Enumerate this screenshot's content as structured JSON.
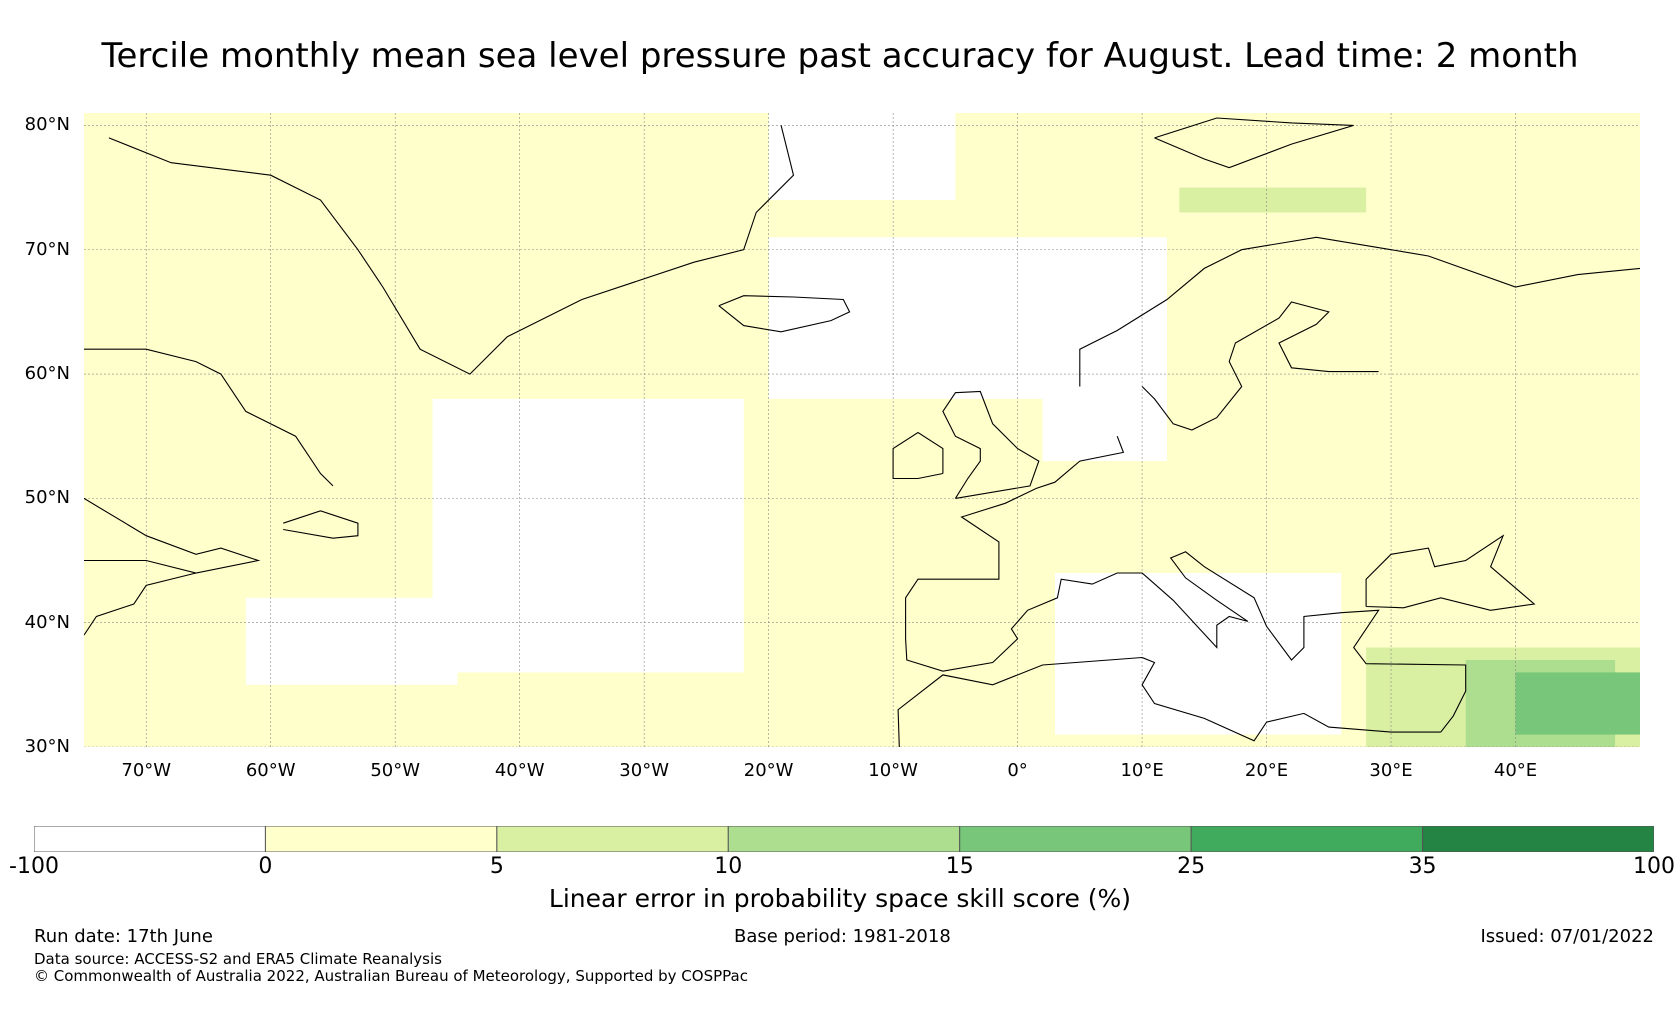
{
  "title": "Tercile monthly mean sea level pressure past accuracy for August. Lead time: 2 month",
  "map": {
    "lon_range": [
      -75,
      50
    ],
    "lat_range": [
      30,
      81
    ],
    "lat_ticks": [
      {
        "value": 80,
        "label": "80°N"
      },
      {
        "value": 70,
        "label": "70°N"
      },
      {
        "value": 60,
        "label": "60°N"
      },
      {
        "value": 50,
        "label": "50°N"
      },
      {
        "value": 40,
        "label": "40°N"
      },
      {
        "value": 30,
        "label": "30°N"
      }
    ],
    "lon_ticks": [
      {
        "value": -70,
        "label": "70°W"
      },
      {
        "value": -60,
        "label": "60°W"
      },
      {
        "value": -50,
        "label": "50°W"
      },
      {
        "value": -40,
        "label": "40°W"
      },
      {
        "value": -30,
        "label": "30°W"
      },
      {
        "value": -20,
        "label": "20°W"
      },
      {
        "value": -10,
        "label": "10°W"
      },
      {
        "value": 0,
        "label": "0°"
      },
      {
        "value": 10,
        "label": "10°E"
      },
      {
        "value": 20,
        "label": "20°E"
      },
      {
        "value": 30,
        "label": "30°E"
      },
      {
        "value": 40,
        "label": "40°E"
      }
    ],
    "fill_color_default": "#ffffcc",
    "skill_regions": [
      {
        "name": "central-north-atlantic",
        "category": "-100-0",
        "lon": [
          -47,
          -22
        ],
        "lat": [
          36,
          58
        ]
      },
      {
        "name": "mid-atlantic-south",
        "category": "-100-0",
        "lon": [
          -62,
          -45
        ],
        "lat": [
          35,
          42
        ]
      },
      {
        "name": "norwegian-sea",
        "category": "-100-0",
        "lon": [
          -20,
          12
        ],
        "lat": [
          58,
          71
        ]
      },
      {
        "name": "north-sea",
        "category": "-100-0",
        "lon": [
          2,
          12
        ],
        "lat": [
          53,
          60
        ]
      },
      {
        "name": "mediterranean",
        "category": "-100-0",
        "lon": [
          3,
          26
        ],
        "lat": [
          31,
          44
        ]
      },
      {
        "name": "greenland-sea",
        "category": "-100-0",
        "lon": [
          -20,
          -5
        ],
        "lat": [
          74,
          81
        ]
      },
      {
        "name": "barents-sea",
        "category": "5-10",
        "lon": [
          13,
          28
        ],
        "lat": [
          73,
          75
        ]
      },
      {
        "name": "eastern-med",
        "category": "5-10",
        "lon": [
          28,
          50
        ],
        "lat": [
          30,
          38
        ]
      },
      {
        "name": "levant",
        "category": "10-15",
        "lon": [
          36,
          48
        ],
        "lat": [
          30,
          37
        ]
      },
      {
        "name": "iran-west",
        "category": "15-25",
        "lon": [
          40,
          50
        ],
        "lat": [
          31,
          36
        ]
      }
    ],
    "coast_lines": [
      {
        "name": "greenland-coast",
        "points": [
          [
            -73,
            79
          ],
          [
            -68,
            77
          ],
          [
            -60,
            76
          ],
          [
            -56,
            74
          ],
          [
            -53,
            70
          ],
          [
            -51,
            67
          ],
          [
            -48,
            62
          ],
          [
            -44,
            60
          ],
          [
            -41,
            63
          ],
          [
            -35,
            66
          ],
          [
            -26,
            69
          ],
          [
            -22,
            70
          ],
          [
            -21,
            73
          ],
          [
            -18,
            76
          ],
          [
            -19,
            80
          ]
        ]
      },
      {
        "name": "iceland-coast",
        "points": [
          [
            -24,
            65.5
          ],
          [
            -22,
            66.3
          ],
          [
            -18,
            66.2
          ],
          [
            -14,
            66
          ],
          [
            -13.5,
            65
          ],
          [
            -15,
            64.3
          ],
          [
            -19,
            63.4
          ],
          [
            -22,
            63.9
          ],
          [
            -24,
            65.5
          ]
        ]
      },
      {
        "name": "labrador-coast",
        "points": [
          [
            -75,
            62
          ],
          [
            -70,
            62
          ],
          [
            -66,
            61
          ],
          [
            -64,
            60
          ],
          [
            -62,
            57
          ],
          [
            -58,
            55
          ],
          [
            -56,
            52
          ],
          [
            -55,
            51
          ]
        ]
      },
      {
        "name": "newfoundland-coast",
        "points": [
          [
            -59,
            48
          ],
          [
            -56,
            49
          ],
          [
            -53,
            48
          ],
          [
            -53,
            47
          ],
          [
            -55,
            46.8
          ],
          [
            -59,
            47.5
          ]
        ]
      },
      {
        "name": "nova-scotia-coast",
        "points": [
          [
            -75,
            45
          ],
          [
            -70,
            45
          ],
          [
            -66,
            44
          ],
          [
            -61,
            45
          ],
          [
            -64,
            46
          ],
          [
            -66,
            45.5
          ],
          [
            -70,
            47
          ],
          [
            -75,
            50
          ]
        ]
      },
      {
        "name": "us-east-coast",
        "points": [
          [
            -75,
            39
          ],
          [
            -74,
            40.5
          ],
          [
            -71,
            41.5
          ],
          [
            -70,
            43
          ],
          [
            -66,
            44
          ]
        ]
      },
      {
        "name": "british-isles-coast",
        "points": [
          [
            -5,
            50
          ],
          [
            1,
            51
          ],
          [
            1.7,
            53
          ],
          [
            0,
            54
          ],
          [
            -2,
            56
          ],
          [
            -3,
            58.6
          ],
          [
            -5,
            58.5
          ],
          [
            -6,
            57
          ],
          [
            -5,
            55
          ],
          [
            -3,
            54
          ],
          [
            -3,
            53
          ],
          [
            -4,
            51.6
          ],
          [
            -5,
            50
          ]
        ]
      },
      {
        "name": "ireland-coast",
        "points": [
          [
            -6,
            52
          ],
          [
            -6,
            54
          ],
          [
            -8,
            55.3
          ],
          [
            -10,
            54
          ],
          [
            -10,
            51.6
          ],
          [
            -8,
            51.6
          ],
          [
            -6,
            52
          ]
        ]
      },
      {
        "name": "scandinavia-coast",
        "points": [
          [
            5,
            59
          ],
          [
            5,
            62
          ],
          [
            8,
            63.5
          ],
          [
            12,
            66
          ],
          [
            15,
            68.5
          ],
          [
            18,
            70
          ],
          [
            24,
            71
          ],
          [
            30,
            70
          ],
          [
            33,
            69.5
          ],
          [
            40,
            67
          ],
          [
            45,
            68
          ],
          [
            50,
            68.5
          ]
        ]
      },
      {
        "name": "sweden-baltic-coast",
        "points": [
          [
            10,
            59
          ],
          [
            11,
            58
          ],
          [
            12.5,
            56
          ],
          [
            14,
            55.5
          ],
          [
            16,
            56.5
          ],
          [
            18,
            59
          ],
          [
            17,
            61
          ],
          [
            17.5,
            62.5
          ],
          [
            21,
            64.5
          ],
          [
            22,
            65.8
          ],
          [
            25,
            65
          ],
          [
            24,
            64
          ],
          [
            21,
            62.5
          ],
          [
            22,
            60.5
          ],
          [
            25,
            60.2
          ],
          [
            29,
            60.2
          ]
        ]
      },
      {
        "name": "europe-west-coast",
        "points": [
          [
            8,
            55
          ],
          [
            8.5,
            53.7
          ],
          [
            5,
            53
          ],
          [
            3,
            51.3
          ],
          [
            1.5,
            50.8
          ],
          [
            -1,
            49.6
          ],
          [
            -4.5,
            48.5
          ],
          [
            -1.5,
            46.5
          ],
          [
            -1.5,
            43.5
          ],
          [
            -8,
            43.5
          ],
          [
            -9,
            42
          ],
          [
            -9,
            38.7
          ],
          [
            -8.9,
            37
          ],
          [
            -6,
            36.1
          ],
          [
            -2,
            36.8
          ],
          [
            0,
            38.7
          ],
          [
            -0.5,
            39.5
          ],
          [
            0.8,
            41
          ],
          [
            3.2,
            42
          ],
          [
            3.5,
            43.5
          ],
          [
            6,
            43.1
          ],
          [
            8,
            44
          ],
          [
            10,
            44
          ],
          [
            12.5,
            41.8
          ],
          [
            16,
            38
          ],
          [
            16,
            39.8
          ],
          [
            17,
            40.5
          ],
          [
            18.5,
            40.1
          ],
          [
            16,
            41.8
          ],
          [
            13.5,
            43.6
          ],
          [
            12.3,
            45.2
          ],
          [
            13.5,
            45.7
          ],
          [
            15,
            44.5
          ],
          [
            19,
            42
          ],
          [
            20,
            39.7
          ],
          [
            22,
            37
          ],
          [
            23,
            38
          ],
          [
            23,
            40.5
          ],
          [
            26,
            40.8
          ],
          [
            29,
            41
          ],
          [
            27,
            38
          ],
          [
            28,
            36.7
          ],
          [
            36,
            36.6
          ],
          [
            36,
            34.5
          ],
          [
            35,
            32.5
          ],
          [
            34,
            31.2
          ]
        ]
      },
      {
        "name": "north-africa-coast",
        "points": [
          [
            -9.5,
            30
          ],
          [
            -9.6,
            33
          ],
          [
            -6,
            35.8
          ],
          [
            -2,
            35
          ],
          [
            2,
            36.6
          ],
          [
            10,
            37.2
          ],
          [
            11,
            36.8
          ],
          [
            10,
            35
          ],
          [
            11,
            33.5
          ],
          [
            15,
            32.3
          ],
          [
            19,
            30.5
          ],
          [
            20,
            32
          ],
          [
            23,
            32.7
          ],
          [
            25,
            31.6
          ],
          [
            30,
            31.2
          ],
          [
            32,
            31.2
          ],
          [
            34,
            31.2
          ]
        ]
      },
      {
        "name": "black-sea-coast",
        "points": [
          [
            28,
            41.3
          ],
          [
            28,
            43.5
          ],
          [
            30,
            45.5
          ],
          [
            33,
            46
          ],
          [
            33.5,
            44.5
          ],
          [
            36,
            45
          ],
          [
            39,
            47
          ],
          [
            38,
            44.5
          ],
          [
            41.5,
            41.5
          ],
          [
            38,
            41
          ],
          [
            34,
            42
          ],
          [
            31,
            41.2
          ],
          [
            28,
            41.3
          ]
        ]
      },
      {
        "name": "svalbard-coast",
        "points": [
          [
            11,
            79
          ],
          [
            16,
            80.6
          ],
          [
            22,
            80.2
          ],
          [
            27,
            80
          ],
          [
            22,
            78.5
          ],
          [
            17,
            76.6
          ],
          [
            15,
            77.3
          ],
          [
            11,
            79
          ]
        ]
      }
    ]
  },
  "colorbar": {
    "label": "Linear error in probability space skill score (%)",
    "bins": [
      {
        "from": "-100",
        "to": "0",
        "color": "#ffffff"
      },
      {
        "from": "0",
        "to": "5",
        "color": "#ffffcc"
      },
      {
        "from": "5",
        "to": "10",
        "color": "#d9f0a3"
      },
      {
        "from": "10",
        "to": "15",
        "color": "#addd8e"
      },
      {
        "from": "15",
        "to": "25",
        "color": "#78c679"
      },
      {
        "from": "25",
        "to": "35",
        "color": "#41ab5d"
      },
      {
        "from": "35",
        "to": "100",
        "color": "#238443"
      }
    ],
    "tick_labels": [
      "-100",
      "0",
      "5",
      "10",
      "15",
      "25",
      "35",
      "100"
    ]
  },
  "footer": {
    "run_date": "Run date: 17th June",
    "base_period": "Base period: 1981-2018",
    "issued": "Issued: 07/01/2022",
    "data_source": "Data source: ACCESS-S2 and ERA5 Climate Reanalysis",
    "copyright": "© Commonwealth of Australia 2022, Australian Bureau of Meteorology, Supported by COSPPac"
  }
}
